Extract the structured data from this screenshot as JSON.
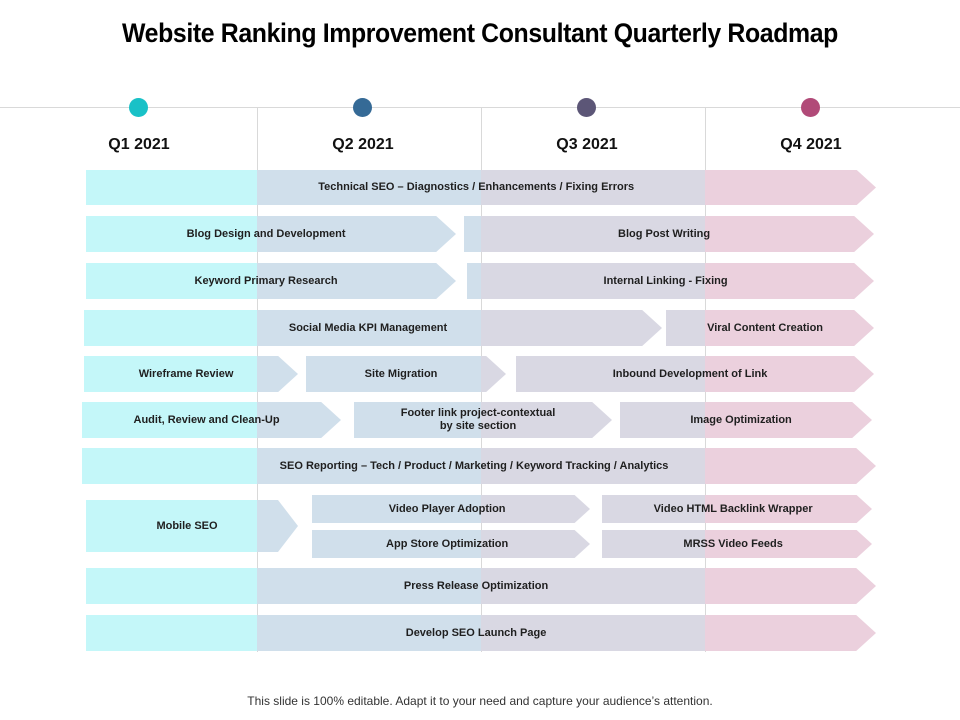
{
  "title": "Website Ranking Improvement Consultant Quarterly Roadmap",
  "footer": "This slide is 100% editable. Adapt it to your need and capture your audience’s attention.",
  "colors": {
    "q1": "#19c1c7",
    "q2": "#356a96",
    "q3": "#5c5677",
    "q4": "#b14a78",
    "q1_fill": "#c4f7f9",
    "q2_fill": "#d0dfeb",
    "q3_fill": "#d9d8e3",
    "q4_fill": "#ebd0dd"
  },
  "quarters": [
    {
      "label": "Q1 2021"
    },
    {
      "label": "Q2 2021"
    },
    {
      "label": "Q3 2021"
    },
    {
      "label": "Q4 2021"
    }
  ],
  "tasks": [
    {
      "label": "Technical SEO – Diagnostics / Enhancements / Fixing Errors",
      "start_quarter": 1,
      "end_quarter": 4
    },
    {
      "label": "Blog Design and Development",
      "start_quarter": 1,
      "end_quarter": 2
    },
    {
      "label": "Blog Post Writing",
      "start_quarter": 3,
      "end_quarter": 4
    },
    {
      "label": "Keyword Primary Research",
      "start_quarter": 1,
      "end_quarter": 2
    },
    {
      "label": "Internal Linking - Fixing",
      "start_quarter": 3,
      "end_quarter": 4
    },
    {
      "label": "Social Media KPI Management",
      "start_quarter": 1,
      "end_quarter": 3
    },
    {
      "label": "Viral Content Creation",
      "start_quarter": 4,
      "end_quarter": 4
    },
    {
      "label": "Wireframe Review",
      "start_quarter": 1,
      "end_quarter": 1
    },
    {
      "label": "Site Migration",
      "start_quarter": 2,
      "end_quarter": 2
    },
    {
      "label": "Inbound Development of Link",
      "start_quarter": 3,
      "end_quarter": 4
    },
    {
      "label": "Audit, Review and Clean-Up",
      "start_quarter": 1,
      "end_quarter": 2
    },
    {
      "label": "Footer link project-contextual\nby site section",
      "start_quarter": 2,
      "end_quarter": 3
    },
    {
      "label": "Image Optimization",
      "start_quarter": 3,
      "end_quarter": 4
    },
    {
      "label": "SEO Reporting – Tech / Product / Marketing / Keyword Tracking / Analytics",
      "start_quarter": 1,
      "end_quarter": 4
    },
    {
      "label": "Mobile SEO",
      "start_quarter": 1,
      "end_quarter": 2
    },
    {
      "label": "Video Player Adoption",
      "start_quarter": 2,
      "end_quarter": 3
    },
    {
      "label": "Video HTML Backlink Wrapper",
      "start_quarter": 3,
      "end_quarter": 4
    },
    {
      "label": "App Store Optimization",
      "start_quarter": 2,
      "end_quarter": 3
    },
    {
      "label": "MRSS Video Feeds",
      "start_quarter": 3,
      "end_quarter": 4
    },
    {
      "label": "Press Release Optimization",
      "start_quarter": 1,
      "end_quarter": 4
    },
    {
      "label": "Develop SEO Launch Page",
      "start_quarter": 1,
      "end_quarter": 4
    }
  ]
}
